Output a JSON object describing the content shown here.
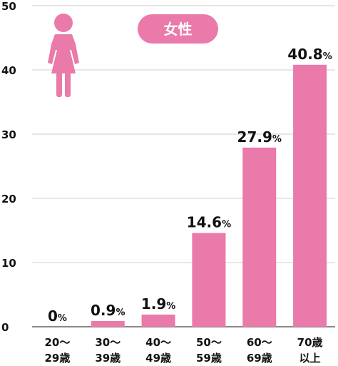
{
  "colors": {
    "bar": "#e97aa9",
    "badge": "#e97aa9",
    "grid": "#cfcfcf",
    "axis": "#444444",
    "figure": "#e97aa9"
  },
  "icon": "female-person-icon",
  "chart_data": {
    "type": "bar",
    "badge": "女性",
    "categories": [
      [
        "20〜",
        "29歳"
      ],
      [
        "30〜",
        "39歳"
      ],
      [
        "40〜",
        "49歳"
      ],
      [
        "50〜",
        "59歳"
      ],
      [
        "60〜",
        "69歳"
      ],
      [
        "70歳",
        "以上"
      ]
    ],
    "values": [
      0,
      0.9,
      1.9,
      14.6,
      27.9,
      40.8
    ],
    "value_labels": [
      "0",
      "0.9",
      "1.9",
      "14.6",
      "27.9",
      "40.8"
    ],
    "unit": "%",
    "yticks": [
      0,
      10,
      20,
      30,
      40,
      50
    ],
    "ylim": [
      0,
      50
    ],
    "grid": true
  }
}
